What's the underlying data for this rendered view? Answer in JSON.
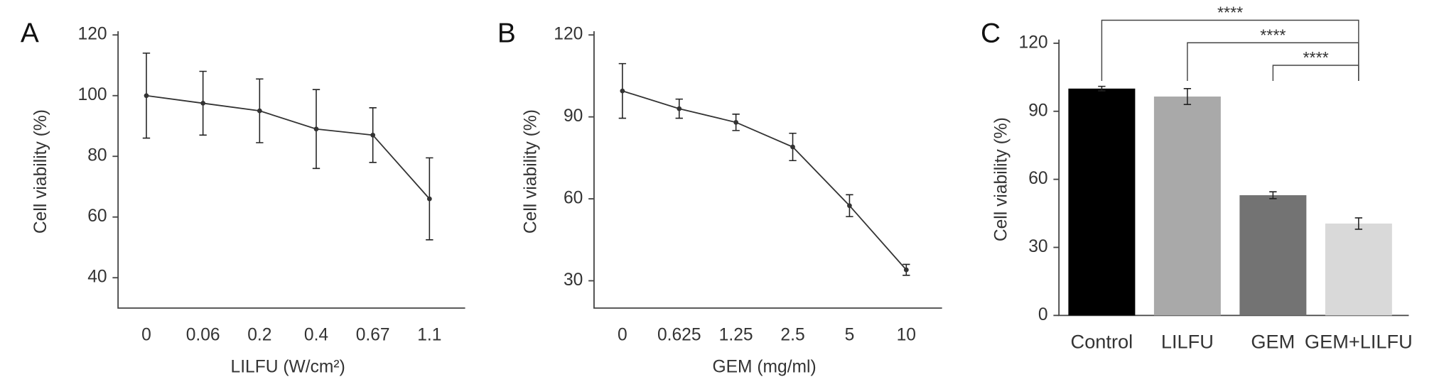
{
  "chart_data": [
    {
      "type": "line",
      "panel": "A",
      "ylabel": "Cell viability (%)",
      "xlabel": "LILFU (W/cm²)",
      "categories": [
        "0",
        "0.06",
        "0.2",
        "0.4",
        "0.67",
        "1.1"
      ],
      "values": [
        100,
        97.5,
        95,
        89,
        87,
        66
      ],
      "errors": [
        14,
        10.5,
        10.5,
        13,
        9,
        13.5
      ],
      "color": "#333333",
      "ylim": [
        30,
        120
      ],
      "yticks": [
        40,
        60,
        80,
        100,
        120
      ]
    },
    {
      "type": "line",
      "panel": "B",
      "ylabel": "Cell viability (%)",
      "xlabel": "GEM (mg/ml)",
      "categories": [
        "0",
        "0.625",
        "1.25",
        "2.5",
        "5",
        "10"
      ],
      "values": [
        99.5,
        93,
        88,
        79,
        57.5,
        34
      ],
      "errors": [
        10,
        3.5,
        3,
        5,
        4,
        2
      ],
      "color": "#333333",
      "ylim": [
        20,
        120
      ],
      "yticks": [
        30,
        60,
        90,
        120
      ]
    },
    {
      "type": "bar",
      "panel": "C",
      "ylabel": "Cell viability (%)",
      "categories": [
        "Control",
        "LILFU",
        "GEM",
        "GEM+LILFU"
      ],
      "values": [
        100,
        96.5,
        53,
        40.5
      ],
      "errors": [
        1,
        3.5,
        1.5,
        2.5
      ],
      "colors": [
        "#000000",
        "#a9a9a9",
        "#737373",
        "#d9d9d9"
      ],
      "ylim": [
        0,
        120
      ],
      "yticks": [
        0,
        30,
        60,
        90,
        120
      ],
      "significance": [
        {
          "label": "****",
          "from": 0,
          "to": 3
        },
        {
          "label": "****",
          "from": 1,
          "to": 3
        },
        {
          "label": "****",
          "from": 2,
          "to": 3
        }
      ]
    }
  ]
}
